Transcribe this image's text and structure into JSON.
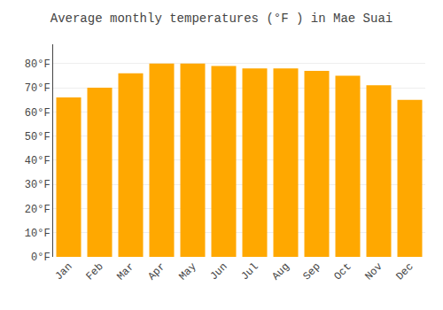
{
  "chart_data": {
    "type": "bar",
    "title": "Average monthly temperatures (°F ) in Mae Suai",
    "categories": [
      "Jan",
      "Feb",
      "Mar",
      "Apr",
      "May",
      "Jun",
      "Jul",
      "Aug",
      "Sep",
      "Oct",
      "Nov",
      "Dec"
    ],
    "values": [
      66,
      70,
      76,
      80,
      80,
      79,
      78,
      78,
      77,
      75,
      71,
      65
    ],
    "color": "#FFA800",
    "ylim": [
      0,
      88
    ],
    "yticks": [
      {
        "value": 0,
        "label": "0°F"
      },
      {
        "value": 10,
        "label": "10°F"
      },
      {
        "value": 20,
        "label": "20°F"
      },
      {
        "value": 30,
        "label": "30°F"
      },
      {
        "value": 40,
        "label": "40°F"
      },
      {
        "value": 50,
        "label": "50°F"
      },
      {
        "value": 60,
        "label": "60°F"
      },
      {
        "value": 70,
        "label": "70°F"
      },
      {
        "value": 80,
        "label": "80°F"
      }
    ],
    "grid": true
  }
}
